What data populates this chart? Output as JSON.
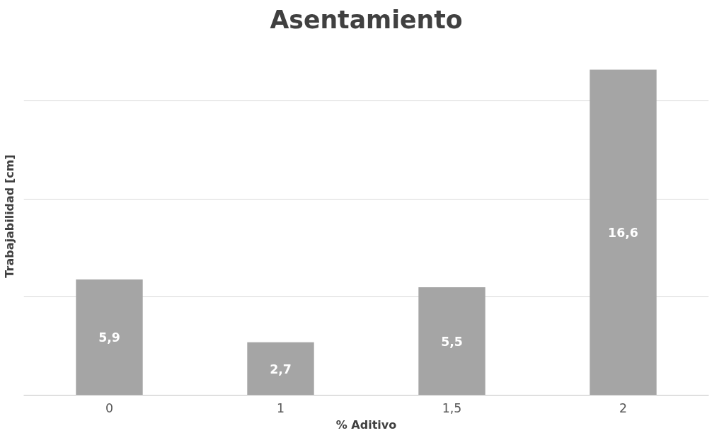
{
  "chart_data": {
    "type": "bar",
    "title": "Asentamiento",
    "xlabel": "% Aditivo",
    "ylabel": "Trabajabilidad [cm]",
    "categories": [
      "0",
      "1",
      "1,5",
      "2"
    ],
    "values": [
      5.9,
      2.7,
      5.5,
      16.6
    ],
    "value_labels": [
      "5,9",
      "2,7",
      "5,5",
      "16,6"
    ],
    "color": "#a5a5a5",
    "grid": "y",
    "tick_labels": "x"
  }
}
